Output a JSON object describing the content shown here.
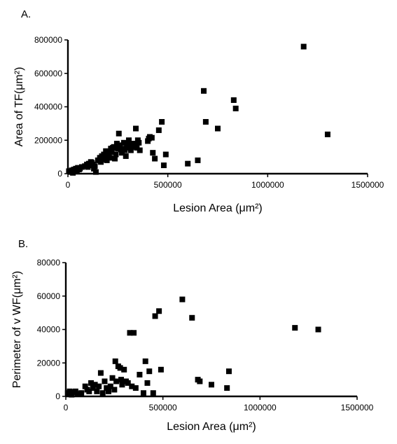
{
  "chart_data": [
    {
      "type": "scatter",
      "panel_label": "A.",
      "xlabel": "Lesion Area (μm²)",
      "ylabel": "Area of TF(μm²)",
      "xlim": [
        0,
        1500000
      ],
      "ylim": [
        0,
        800000
      ],
      "xticks": [
        "0",
        "500000",
        "1000000",
        "1500000"
      ],
      "yticks": [
        "0",
        "200000",
        "400000",
        "600000",
        "800000"
      ],
      "grid": false,
      "marker": "square",
      "color": "#000000",
      "x": [
        5000,
        15000,
        20000,
        25000,
        30000,
        35000,
        40000,
        45000,
        50000,
        55000,
        60000,
        70000,
        85000,
        95000,
        100000,
        105000,
        110000,
        115000,
        120000,
        125000,
        130000,
        135000,
        140000,
        150000,
        160000,
        165000,
        170000,
        175000,
        180000,
        185000,
        190000,
        195000,
        200000,
        205000,
        210000,
        215000,
        220000,
        225000,
        230000,
        235000,
        240000,
        245000,
        250000,
        255000,
        260000,
        265000,
        270000,
        275000,
        280000,
        285000,
        290000,
        295000,
        300000,
        305000,
        310000,
        315000,
        320000,
        325000,
        330000,
        335000,
        340000,
        345000,
        350000,
        355000,
        360000,
        400000,
        405000,
        410000,
        420000,
        425000,
        435000,
        455000,
        470000,
        480000,
        490000,
        600000,
        650000,
        680000,
        690000,
        750000,
        830000,
        840000,
        1180000,
        1300000
      ],
      "y": [
        15000,
        10000,
        20000,
        5000,
        25000,
        15000,
        30000,
        20000,
        35000,
        25000,
        30000,
        40000,
        45000,
        55000,
        40000,
        60000,
        50000,
        70000,
        65000,
        55000,
        30000,
        45000,
        10000,
        80000,
        95000,
        70000,
        105000,
        85000,
        115000,
        95000,
        135000,
        80000,
        110000,
        120000,
        95000,
        150000,
        130000,
        155000,
        160000,
        90000,
        115000,
        180000,
        150000,
        240000,
        170000,
        145000,
        125000,
        150000,
        185000,
        140000,
        105000,
        160000,
        175000,
        200000,
        155000,
        140000,
        165000,
        175000,
        180000,
        160000,
        270000,
        155000,
        200000,
        185000,
        140000,
        195000,
        210000,
        220000,
        215000,
        125000,
        90000,
        260000,
        310000,
        50000,
        115000,
        60000,
        80000,
        495000,
        310000,
        270000,
        440000,
        390000,
        760000,
        235000
      ]
    },
    {
      "type": "scatter",
      "panel_label": "B.",
      "xlabel": "Lesion Area (μm²)",
      "ylabel": "Perimeter of v WF(μm²)",
      "xlim": [
        0,
        1500000
      ],
      "ylim": [
        0,
        80000
      ],
      "xticks": [
        "0",
        "500000",
        "1000000",
        "1500000"
      ],
      "yticks": [
        "0",
        "20000",
        "40000",
        "60000",
        "80000"
      ],
      "grid": false,
      "marker": "square",
      "color": "#000000",
      "x": [
        10000,
        20000,
        30000,
        40000,
        50000,
        60000,
        80000,
        100000,
        110000,
        120000,
        130000,
        140000,
        150000,
        160000,
        170000,
        180000,
        190000,
        200000,
        210000,
        220000,
        230000,
        240000,
        250000,
        255000,
        260000,
        270000,
        280000,
        285000,
        290000,
        300000,
        310000,
        320000,
        330000,
        340000,
        350000,
        360000,
        380000,
        400000,
        410000,
        420000,
        430000,
        450000,
        460000,
        480000,
        490000,
        600000,
        650000,
        680000,
        690000,
        750000,
        830000,
        840000,
        1180000,
        1300000
      ],
      "y": [
        2000,
        3000,
        1000,
        2500,
        3000,
        1500,
        2000,
        6000,
        4000,
        3000,
        8000,
        5000,
        7000,
        3000,
        6000,
        14000,
        2000,
        9000,
        5000,
        3000,
        6000,
        11000,
        4000,
        21000,
        9000,
        18000,
        17000,
        10000,
        7000,
        16000,
        9000,
        8000,
        38000,
        6000,
        38000,
        5000,
        13000,
        2000,
        21000,
        8000,
        15000,
        2000,
        48000,
        51000,
        16000,
        58000,
        47000,
        10000,
        9000,
        7000,
        5000,
        15000,
        41000,
        40000
      ]
    }
  ]
}
